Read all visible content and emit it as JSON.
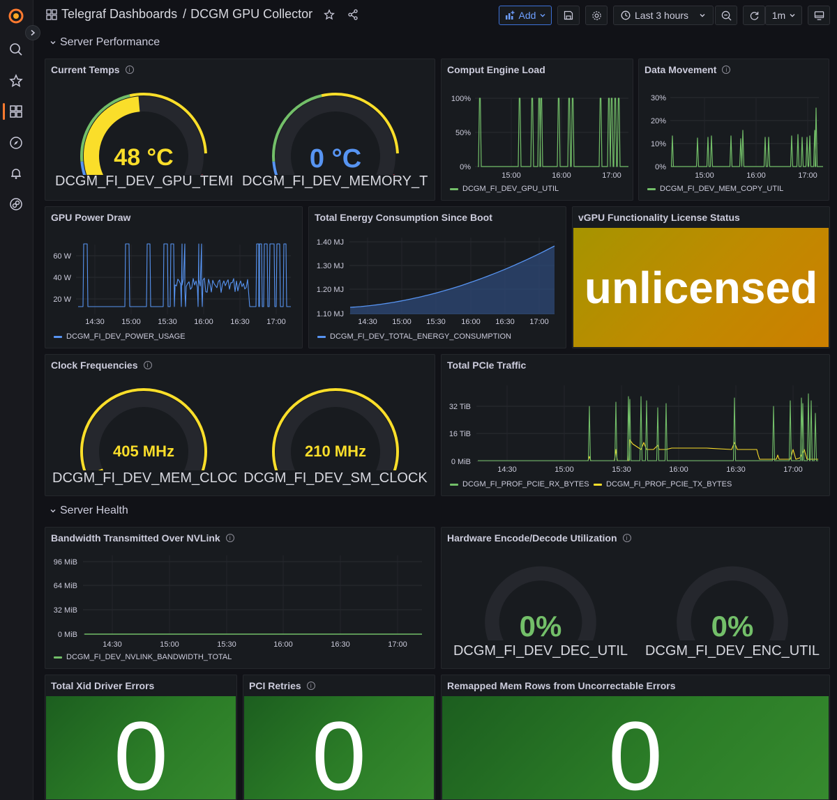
{
  "header": {
    "breadcrumb_folder": "Telegraf Dashboards",
    "breadcrumb_sep": "/",
    "dashboard_title": "DCGM GPU Collector",
    "add_label": "Add",
    "time_range": "Last 3 hours",
    "refresh_interval": "1m"
  },
  "rows": {
    "performance": "Server Performance",
    "health": "Server Health"
  },
  "panels": {
    "current_temps": {
      "title": "Current Temps",
      "gauges": [
        {
          "value": "48 °C",
          "label": "DCGM_FI_DEV_GPU_TEMP",
          "fraction": 0.48,
          "color": "#fade2a"
        },
        {
          "value": "0 °C",
          "label": "DCGM_FI_DEV_MEMORY_TE...",
          "fraction": 0.0,
          "color": "#5794f2"
        }
      ]
    },
    "compute_load": {
      "title": "Comput Engine Load",
      "yticks": [
        "100%",
        "50%",
        "0%"
      ],
      "xticks": [
        "15:00",
        "16:00",
        "17:00"
      ],
      "legend": "DCGM_FI_DEV_GPU_UTIL"
    },
    "data_movement": {
      "title": "Data Movement",
      "yticks": [
        "30%",
        "20%",
        "10%",
        "0%"
      ],
      "xticks": [
        "15:00",
        "16:00",
        "17:00"
      ],
      "legend": "DCGM_FI_DEV_MEM_COPY_UTIL"
    },
    "power_draw": {
      "title": "GPU Power Draw",
      "yticks": [
        "60 W",
        "40 W",
        "20 W"
      ],
      "xticks": [
        "14:30",
        "15:00",
        "15:30",
        "16:00",
        "16:30",
        "17:00"
      ],
      "legend": "DCGM_FI_DEV_POWER_USAGE"
    },
    "energy": {
      "title": "Total Energy Consumption Since Boot",
      "yticks": [
        "1.40 MJ",
        "1.30 MJ",
        "1.20 MJ",
        "1.10 MJ"
      ],
      "xticks": [
        "14:30",
        "15:00",
        "15:30",
        "16:00",
        "16:30",
        "17:00"
      ],
      "legend": "DCGM_FI_DEV_TOTAL_ENERGY_CONSUMPTION"
    },
    "license": {
      "title": "vGPU Functionality License Status",
      "value": "unlicensed"
    },
    "clocks": {
      "title": "Clock Frequencies",
      "gauges": [
        {
          "value": "405 MHz",
          "label": "DCGM_FI_DEV_MEM_CLOCK",
          "fraction": 0.05,
          "color": "#fade2a"
        },
        {
          "value": "210 MHz",
          "label": "DCGM_FI_DEV_SM_CLOCK",
          "fraction": 0.0,
          "color": "#fade2a"
        }
      ]
    },
    "pcie": {
      "title": "Total PCIe Traffic",
      "yticks": [
        "32 TiB",
        "16 TiB",
        "0 MiB"
      ],
      "xticks": [
        "14:30",
        "15:00",
        "15:30",
        "16:00",
        "16:30",
        "17:00"
      ],
      "legend_rx": "DCGM_FI_PROF_PCIE_RX_BYTES",
      "legend_tx": "DCGM_FI_PROF_PCIE_TX_BYTES"
    },
    "nvlink": {
      "title": "Bandwidth Transmitted Over NVLink",
      "yticks": [
        "96 MiB",
        "64 MiB",
        "32 MiB",
        "0 MiB"
      ],
      "xticks": [
        "14:30",
        "15:00",
        "15:30",
        "16:00",
        "16:30",
        "17:00"
      ],
      "legend": "DCGM_FI_DEV_NVLINK_BANDWIDTH_TOTAL"
    },
    "encdec": {
      "title": "Hardware Encode/Decode Utilization",
      "gauges": [
        {
          "value": "0%",
          "label": "DCGM_FI_DEV_DEC_UTIL",
          "fraction": 0.0,
          "color": "#73bf69"
        },
        {
          "value": "0%",
          "label": "DCGM_FI_DEV_ENC_UTIL",
          "fraction": 0.0,
          "color": "#73bf69"
        }
      ]
    },
    "xid": {
      "title": "Total Xid Driver Errors",
      "value": "0"
    },
    "pci_retries": {
      "title": "PCI Retries",
      "value": "0"
    },
    "remapped": {
      "title": "Remapped Mem Rows from Uncorrectable Errors",
      "value": "0"
    }
  },
  "colors": {
    "green": "#73bf69",
    "yellow": "#fade2a",
    "blue": "#5794f2",
    "red": "#f2495c",
    "accent": "#ff7a2f"
  },
  "icons": [
    "grafana-logo-icon",
    "search-icon",
    "star-icon",
    "dashboards-icon",
    "explore-icon",
    "alert-bell-icon",
    "connections-icon"
  ]
}
